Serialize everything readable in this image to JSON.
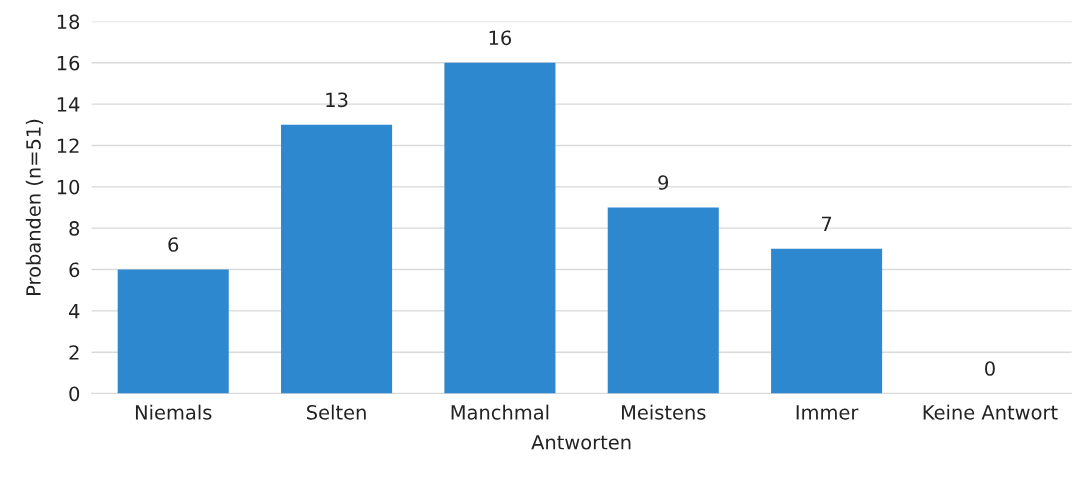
{
  "chart_data": {
    "type": "bar",
    "xlabel": "Antworten",
    "ylabel": "Probanden (n=51)",
    "categories": [
      "Niemals",
      "Selten",
      "Manchmal",
      "Meistens",
      "Immer",
      "Keine Antwort"
    ],
    "values": [
      6,
      13,
      16,
      9,
      7,
      0
    ],
    "color": "#2e88cf",
    "ylim": [
      0,
      18
    ],
    "yticks": [
      0,
      2,
      4,
      6,
      8,
      10,
      12,
      14,
      16,
      18
    ],
    "grid": "y",
    "data_labels": true
  }
}
